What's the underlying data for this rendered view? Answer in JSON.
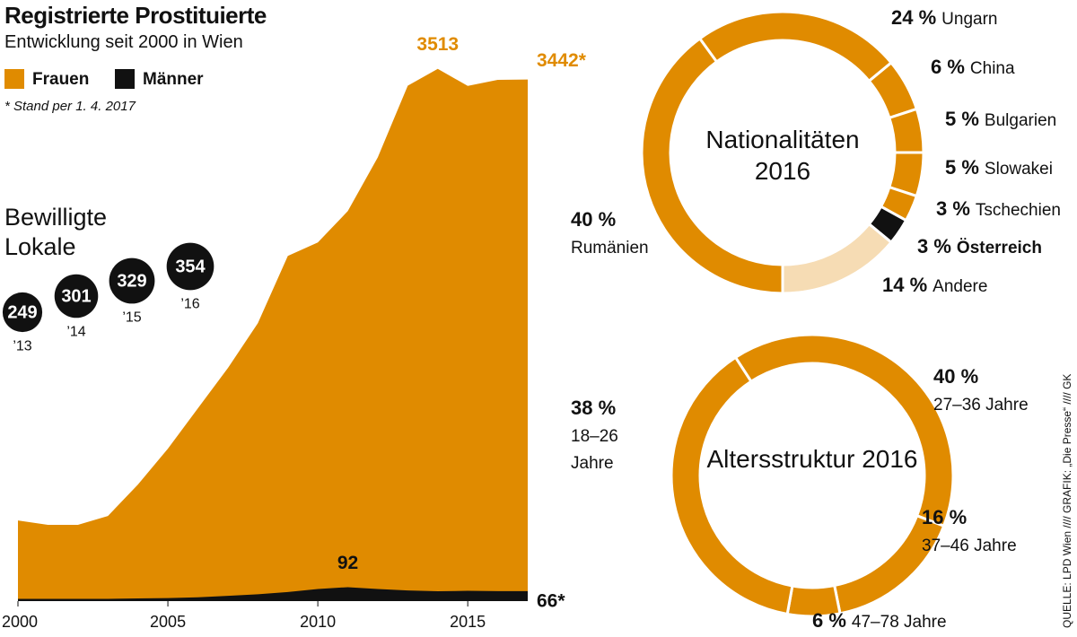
{
  "chart_data": [
    {
      "type": "area",
      "title": "Registrierte Prostituierte",
      "subtitle": "Entwicklung seit 2000 in Wien",
      "note": "* Stand per 1. 4. 2017",
      "x": [
        2000,
        2001,
        2002,
        2003,
        2004,
        2005,
        2006,
        2007,
        2008,
        2009,
        2010,
        2011,
        2012,
        2013,
        2014,
        2015,
        2016,
        2017
      ],
      "series": [
        {
          "name": "Frauen",
          "color": "#e08b00",
          "values": [
            532,
            503,
            503,
            562,
            769,
            1006,
            1272,
            1538,
            1834,
            2278,
            2367,
            2574,
            2929,
            3402,
            3513,
            3400,
            3440,
            3442
          ],
          "value_labels": [
            null,
            null,
            null,
            null,
            null,
            null,
            null,
            null,
            null,
            null,
            null,
            null,
            null,
            null,
            "3513",
            null,
            null,
            "3442*"
          ]
        },
        {
          "name": "Männer",
          "color": "#111111",
          "values": [
            15,
            15,
            15,
            15,
            18,
            20,
            25,
            35,
            45,
            60,
            80,
            92,
            80,
            70,
            65,
            68,
            66,
            66
          ],
          "value_labels": [
            null,
            null,
            null,
            null,
            null,
            null,
            null,
            null,
            null,
            null,
            null,
            "92",
            null,
            null,
            null,
            null,
            null,
            "66*"
          ]
        }
      ],
      "xlim": [
        2000,
        2017
      ],
      "xticks": [
        2000,
        2005,
        2010,
        2015
      ],
      "ylim": [
        0,
        3600
      ],
      "legend": "top-left"
    },
    {
      "type": "bubble",
      "title": "Bewilligte Lokale",
      "categories": [
        "’13",
        "’14",
        "’15",
        "’16"
      ],
      "values": [
        249,
        301,
        329,
        354
      ],
      "color": "#111111"
    },
    {
      "type": "donut",
      "title": "Nationalitäten 2016",
      "categories": [
        "Ungarn",
        "China",
        "Bulgarien",
        "Slowakei",
        "Tschechien",
        "Österreich",
        "Andere",
        "Rumänien"
      ],
      "values": [
        24,
        6,
        5,
        5,
        3,
        3,
        14,
        40
      ],
      "value_labels": [
        "24 %",
        "6 %",
        "5 %",
        "5 %",
        "3 %",
        "3 %",
        "14 %",
        "40 %"
      ],
      "colors": [
        "#e08b00",
        "#e08b00",
        "#e08b00",
        "#e08b00",
        "#e08b00",
        "#111111",
        "#f6dcb4",
        "#e08b00"
      ]
    },
    {
      "type": "donut",
      "title": "Altersstruktur 2016",
      "categories": [
        "27–36 Jahre",
        "37–46 Jahre",
        "47–78 Jahre",
        "18–26 Jahre"
      ],
      "values": [
        40,
        16,
        6,
        38
      ],
      "value_labels": [
        "40 %",
        "16 %",
        "6 %",
        "38 %"
      ],
      "colors": [
        "#e08b00",
        "#e08b00",
        "#e08b00",
        "#e08b00"
      ]
    }
  ],
  "source": "QUELLE: LPD Wien //// GRAFIK: „Die Presse“ //// GK"
}
